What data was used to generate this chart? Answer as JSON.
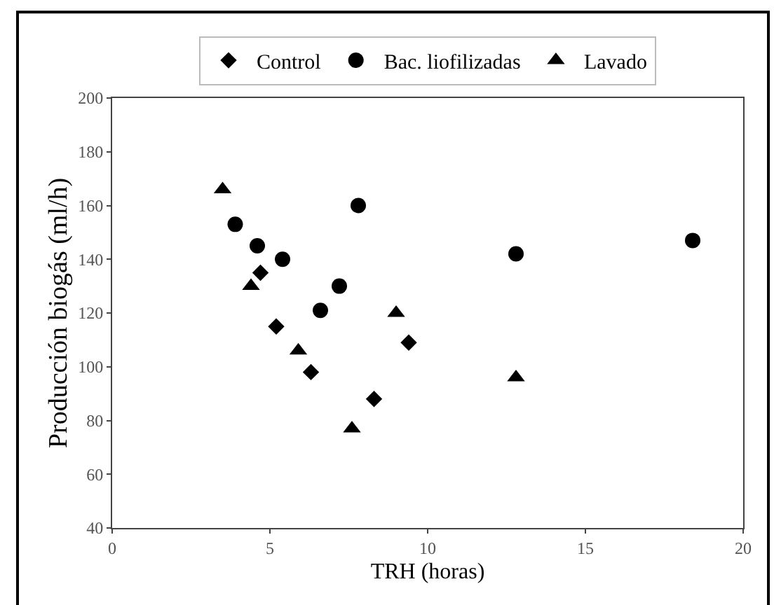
{
  "chart_data": {
    "type": "scatter",
    "xlabel": "TRH (horas)",
    "ylabel": "Producción biogás (ml/h)",
    "xlim": [
      0,
      20
    ],
    "xticks": [
      0,
      5,
      10,
      15,
      20
    ],
    "ylim": [
      40,
      200
    ],
    "yticks": [
      40,
      60,
      80,
      100,
      120,
      140,
      160,
      180,
      200
    ],
    "legend": "top",
    "series": [
      {
        "name": "Control",
        "color": "#000000",
        "marker": "diamond",
        "x": [
          4.7,
          5.2,
          6.3,
          8.3,
          9.4
        ],
        "values": [
          135,
          115,
          98,
          88,
          109
        ]
      },
      {
        "name": "Bac. liofilizadas",
        "color": "#000000",
        "marker": "circle",
        "x": [
          3.9,
          4.6,
          5.4,
          6.6,
          7.2,
          7.8,
          12.8,
          18.4
        ],
        "values": [
          153,
          145,
          140,
          121,
          130,
          160,
          142,
          147
        ]
      },
      {
        "name": "Lavado",
        "color": "#000000",
        "marker": "triangle",
        "x": [
          3.5,
          4.4,
          5.9,
          7.6,
          9.0,
          12.8
        ],
        "values": [
          166,
          130,
          106,
          77,
          120,
          96
        ]
      }
    ]
  }
}
